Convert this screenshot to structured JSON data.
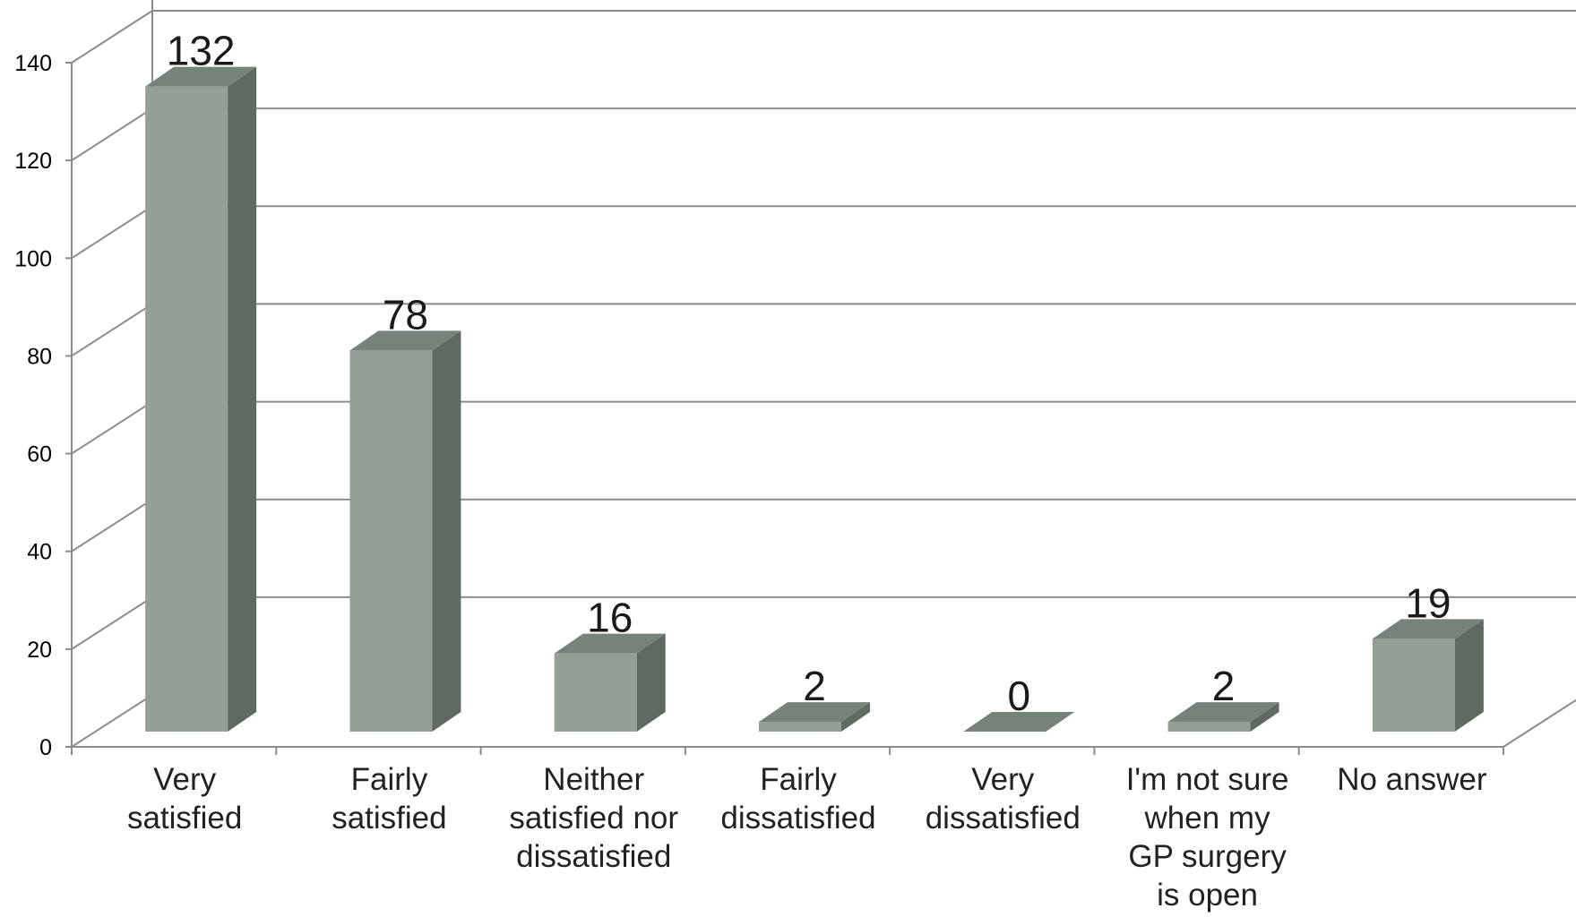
{
  "chart_data": {
    "type": "bar",
    "style": "3d-column",
    "categories": [
      [
        "Very",
        "satisfied"
      ],
      [
        "Fairly",
        "satisfied"
      ],
      [
        "Neither",
        "satisfied nor",
        "dissatisfied"
      ],
      [
        "Fairly",
        "dissatisfied"
      ],
      [
        "Very",
        "dissatisfied"
      ],
      [
        "I'm not sure",
        "when my",
        "GP surgery",
        "is open"
      ],
      [
        "No answer"
      ]
    ],
    "values": [
      132,
      78,
      16,
      2,
      0,
      2,
      19
    ],
    "data_labels": [
      "132",
      "78",
      "16",
      "2",
      "0",
      "2",
      "19"
    ],
    "y_ticks": [
      "0",
      "20",
      "40",
      "60",
      "80",
      "100",
      "120",
      "140"
    ],
    "ylim": [
      0,
      140
    ],
    "grid": true,
    "legend": "none",
    "title": "",
    "xlabel": "",
    "ylabel": ""
  },
  "colors": {
    "bar_front": "#949f95",
    "bar_side": "#5f6a61",
    "bar_top": "#76827a",
    "grid": "#8c8c8c",
    "axis": "#8c8c8c",
    "text": "#222222"
  }
}
